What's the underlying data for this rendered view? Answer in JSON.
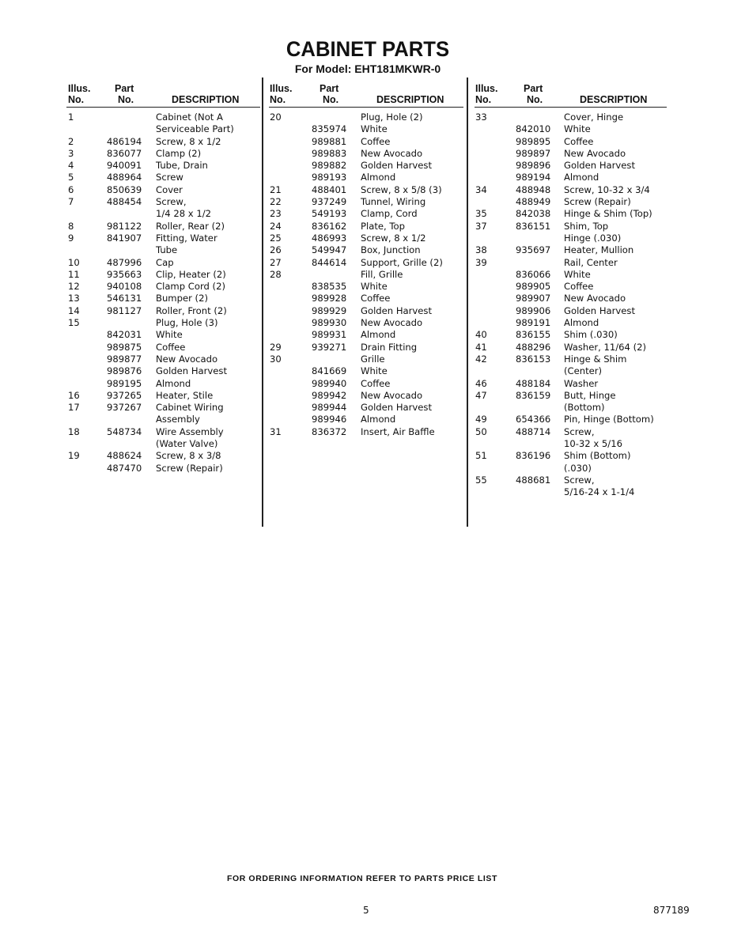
{
  "title": "CABINET PARTS",
  "subtitle": "For Model: EHT181MKWR-0",
  "headers": {
    "illus": [
      "Illus.",
      "No."
    ],
    "part": [
      "Part",
      "No."
    ],
    "desc": "DESCRIPTION"
  },
  "columns": [
    [
      [
        "1",
        "",
        "Cabinet (Not A"
      ],
      [
        "",
        "",
        "Serviceable Part)"
      ],
      [
        "2",
        "486194",
        "Screw, 8 x 1/2"
      ],
      [
        "3",
        "836077",
        "Clamp (2)"
      ],
      [
        "4",
        "940091",
        "Tube, Drain"
      ],
      [
        "5",
        "488964",
        "Screw"
      ],
      [
        "6",
        "850639",
        "Cover"
      ],
      [
        "7",
        "488454",
        "Screw,"
      ],
      [
        "",
        "",
        "1/4 28 x 1/2"
      ],
      [
        "8",
        "981122",
        "Roller, Rear (2)"
      ],
      [
        "9",
        "841907",
        "Fitting, Water"
      ],
      [
        "",
        "",
        "Tube"
      ],
      [
        "10",
        "487996",
        "Cap"
      ],
      [
        "11",
        "935663",
        "Clip, Heater (2)"
      ],
      [
        "12",
        "940108",
        "Clamp Cord (2)"
      ],
      [
        "13",
        "546131",
        "Bumper (2)"
      ],
      [
        "14",
        "981127",
        "Roller, Front (2)"
      ],
      [
        "15",
        "",
        "Plug, Hole (3)"
      ],
      [
        "",
        "842031",
        "White"
      ],
      [
        "",
        "989875",
        "Coffee"
      ],
      [
        "",
        "989877",
        "New Avocado"
      ],
      [
        "",
        "989876",
        "Golden Harvest"
      ],
      [
        "",
        "989195",
        "Almond"
      ],
      [
        "16",
        "937265",
        "Heater, Stile"
      ],
      [
        "17",
        "937267",
        "Cabinet Wiring"
      ],
      [
        "",
        "",
        "Assembly"
      ],
      [
        "18",
        "548734",
        "Wire Assembly"
      ],
      [
        "",
        "",
        "(Water Valve)"
      ],
      [
        "19",
        "488624",
        "Screw, 8 x 3/8"
      ],
      [
        "",
        "487470",
        "Screw (Repair)"
      ]
    ],
    [
      [
        "20",
        "",
        "Plug, Hole (2)"
      ],
      [
        "",
        "835974",
        "White"
      ],
      [
        "",
        "989881",
        "Coffee"
      ],
      [
        "",
        "989883",
        "New Avocado"
      ],
      [
        "",
        "989882",
        "Golden Harvest"
      ],
      [
        "",
        "989193",
        "Almond"
      ],
      [
        "21",
        "488401",
        "Screw, 8 x 5/8 (3)"
      ],
      [
        "22",
        "937249",
        "Tunnel, Wiring"
      ],
      [
        "23",
        "549193",
        "Clamp, Cord"
      ],
      [
        "24",
        "836162",
        "Plate, Top"
      ],
      [
        "25",
        "486993",
        "Screw, 8 x 1/2"
      ],
      [
        "26",
        "549947",
        "Box, Junction"
      ],
      [
        "27",
        "844614",
        "Support, Grille (2)"
      ],
      [
        "28",
        "",
        "Fill, Grille"
      ],
      [
        "",
        "838535",
        "White"
      ],
      [
        "",
        "989928",
        "Coffee"
      ],
      [
        "",
        "989929",
        "Golden Harvest"
      ],
      [
        "",
        "989930",
        "New Avocado"
      ],
      [
        "",
        "989931",
        "Almond"
      ],
      [
        "29",
        "939271",
        "Drain Fitting"
      ],
      [
        "30",
        "",
        "Grille"
      ],
      [
        "",
        "841669",
        "White"
      ],
      [
        "",
        "989940",
        "Coffee"
      ],
      [
        "",
        "989942",
        "New Avocado"
      ],
      [
        "",
        "989944",
        "Golden Harvest"
      ],
      [
        "",
        "989946",
        "Almond"
      ],
      [
        "31",
        "836372",
        "Insert, Air Baffle"
      ]
    ],
    [
      [
        "33",
        "",
        "Cover, Hinge"
      ],
      [
        "",
        "842010",
        "White"
      ],
      [
        "",
        "989895",
        "Coffee"
      ],
      [
        "",
        "989897",
        "New Avocado"
      ],
      [
        "",
        "989896",
        "Golden Harvest"
      ],
      [
        "",
        "989194",
        "Almond"
      ],
      [
        "34",
        "488948",
        "Screw, 10-32 x 3/4"
      ],
      [
        "",
        "488949",
        "Screw (Repair)"
      ],
      [
        "35",
        "842038",
        "Hinge & Shim (Top)"
      ],
      [
        "37",
        "836151",
        "Shim, Top"
      ],
      [
        "",
        "",
        "Hinge (.030)"
      ],
      [
        "38",
        "935697",
        "Heater, Mullion"
      ],
      [
        "39",
        "",
        "Rail, Center"
      ],
      [
        "",
        "836066",
        "White"
      ],
      [
        "",
        "989905",
        "Coffee"
      ],
      [
        "",
        "989907",
        "New Avocado"
      ],
      [
        "",
        "989906",
        "Golden Harvest"
      ],
      [
        "",
        "989191",
        "Almond"
      ],
      [
        "40",
        "836155",
        "Shim (.030)"
      ],
      [
        "41",
        "488296",
        "Washer, 11/64 (2)"
      ],
      [
        "42",
        "836153",
        "Hinge & Shim"
      ],
      [
        "",
        "",
        "(Center)"
      ],
      [
        "46",
        "488184",
        "Washer"
      ],
      [
        "47",
        "836159",
        "Butt, Hinge"
      ],
      [
        "",
        "",
        "(Bottom)"
      ],
      [
        "49",
        "654366",
        "Pin, Hinge (Bottom)"
      ],
      [
        "50",
        "488714",
        "Screw,"
      ],
      [
        "",
        "",
        "10-32 x 5/16"
      ],
      [
        "51",
        "836196",
        "Shim (Bottom)"
      ],
      [
        "",
        "",
        "(.030)"
      ],
      [
        "55",
        "488681",
        "Screw,"
      ],
      [
        "",
        "",
        "5/16-24 x 1-1/4"
      ]
    ]
  ],
  "footer": "FOR ORDERING INFORMATION REFER TO PARTS PRICE LIST",
  "page_number": "5",
  "doc_code": "877189"
}
